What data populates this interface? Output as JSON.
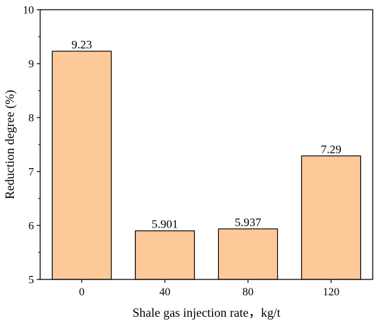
{
  "chart_data": {
    "type": "bar",
    "xlabel": "Shale gas injection rate，kg/t",
    "ylabel": "Reduction degree (%)",
    "categories": [
      "0",
      "40",
      "80",
      "120"
    ],
    "values": [
      9.23,
      5.901,
      5.937,
      7.29
    ],
    "value_labels": [
      "9.23",
      "5.901",
      "5.937",
      "7.29"
    ],
    "ylim": [
      5,
      10
    ],
    "yticks": [
      5,
      6,
      7,
      8,
      9,
      10
    ],
    "grid": false,
    "legend": "none",
    "bar_color": "#fdc998",
    "bar_edge_color": "#000000"
  }
}
